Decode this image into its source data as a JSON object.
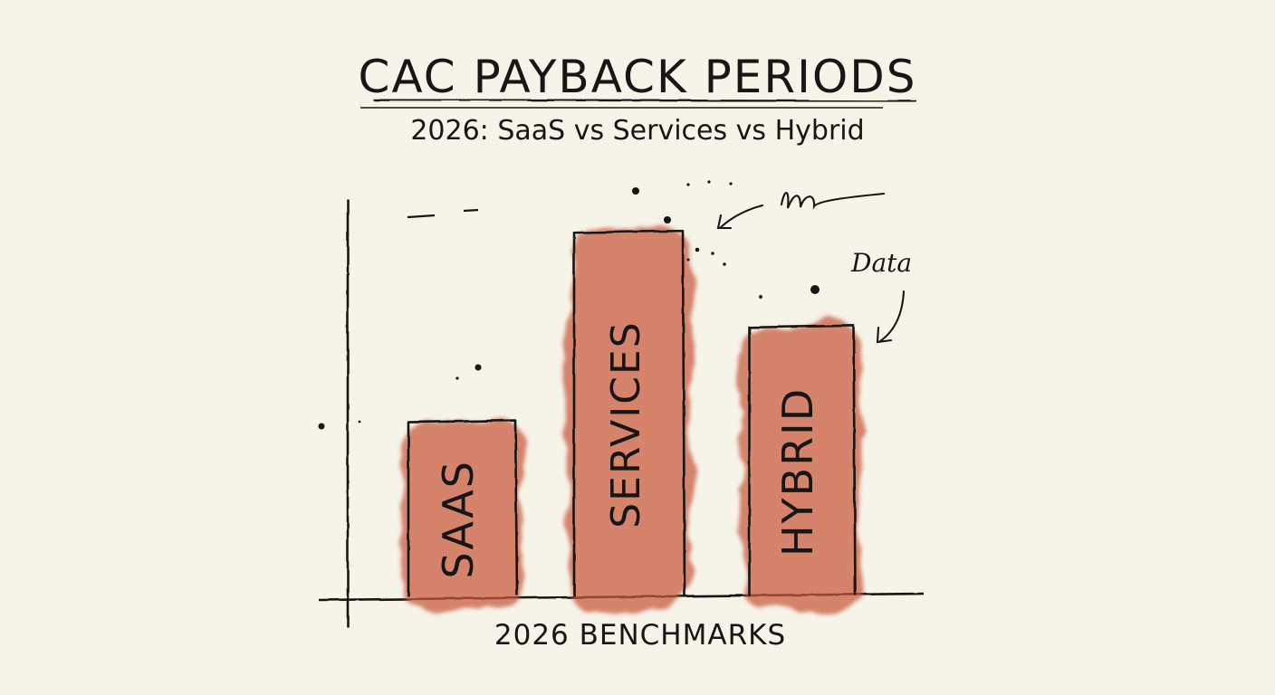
{
  "chart_data": {
    "type": "bar",
    "title": "CAC PAYBACK PERIODS",
    "subtitle": "2026: SaaS vs Services vs Hybrid",
    "xlabel": "2026 BENCHMARKS",
    "ylabel": "",
    "categories": [
      "SAAS",
      "SERVICES",
      "HYBRID"
    ],
    "values": [
      20,
      42,
      31
    ],
    "ylim": [
      0,
      48
    ],
    "grid": false,
    "legend": "none",
    "annotations": [
      "Data"
    ],
    "colors": {
      "bar_fill": "#c8583a",
      "ink": "#161616",
      "paper": "#f6f3e9"
    }
  }
}
